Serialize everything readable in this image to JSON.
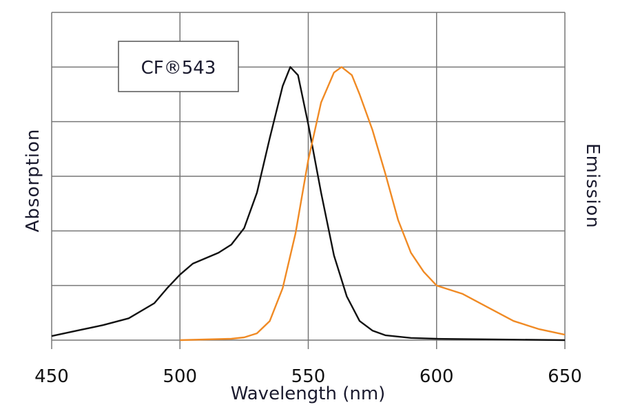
{
  "chart_data": {
    "type": "line",
    "legend_box": "CF®543",
    "xlabel": "Wavelength (nm)",
    "ylabel_left": "Absorption",
    "ylabel_right": "Emission",
    "xlim": [
      450,
      650
    ],
    "ylim": [
      0,
      1.2
    ],
    "xticks": [
      450,
      500,
      550,
      600,
      650
    ],
    "grid": true,
    "legend_placement": "top-left",
    "series": [
      {
        "key": "absorption",
        "color": "#111111",
        "x": [
          450,
          460,
          470,
          480,
          490,
          495,
          500,
          505,
          510,
          515,
          520,
          525,
          530,
          535,
          540,
          543,
          546,
          550,
          555,
          560,
          565,
          570,
          575,
          580,
          590,
          600,
          650
        ],
        "y": [
          0.015,
          0.035,
          0.055,
          0.08,
          0.135,
          0.19,
          0.24,
          0.28,
          0.3,
          0.32,
          0.35,
          0.41,
          0.54,
          0.74,
          0.93,
          1.0,
          0.97,
          0.79,
          0.54,
          0.31,
          0.16,
          0.07,
          0.035,
          0.018,
          0.008,
          0.005,
          0
        ]
      },
      {
        "key": "emission",
        "color": "#f08a24",
        "x": [
          500,
          520,
          525,
          530,
          535,
          540,
          545,
          550,
          555,
          560,
          563,
          567,
          570,
          575,
          580,
          585,
          590,
          595,
          600,
          610,
          620,
          630,
          640,
          650
        ],
        "y": [
          0,
          0.005,
          0.01,
          0.025,
          0.07,
          0.19,
          0.39,
          0.66,
          0.87,
          0.98,
          1.0,
          0.97,
          0.9,
          0.77,
          0.61,
          0.44,
          0.32,
          0.25,
          0.2,
          0.17,
          0.12,
          0.07,
          0.04,
          0.02
        ]
      }
    ]
  }
}
